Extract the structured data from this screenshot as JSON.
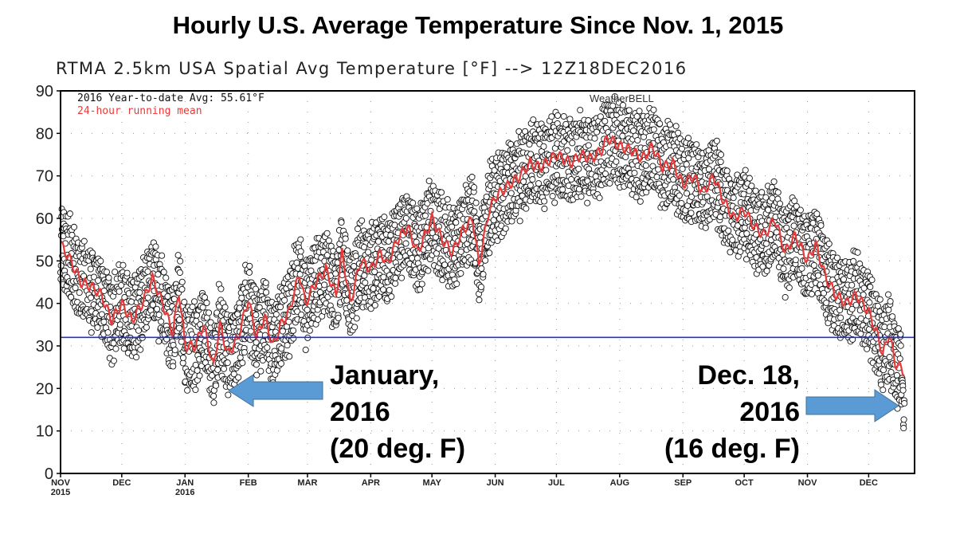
{
  "chart_data": {
    "type": "scatter",
    "title": "Hourly U.S. Average Temperature Since Nov. 1, 2015",
    "subtitle": "RTMA 2.5km USA Spatial Avg Temperature [°F] --> 12Z18DEC2016",
    "legend": {
      "avg_text": "2016 Year-to-date Avg: 55.61°F",
      "mean_text": "24-hour running mean",
      "placement": "top-left"
    },
    "watermark": "WeatherBELL",
    "ylim": [
      0,
      90
    ],
    "yticks": [
      0,
      10,
      20,
      30,
      40,
      50,
      60,
      70,
      80,
      90
    ],
    "xlim_days_since_2015_11_01": [
      0,
      418.5
    ],
    "xticks": [
      {
        "day": 0,
        "label": "NOV",
        "sub": "2015"
      },
      {
        "day": 30,
        "label": "DEC",
        "sub": ""
      },
      {
        "day": 61,
        "label": "JAN",
        "sub": "2016"
      },
      {
        "day": 92,
        "label": "FEB",
        "sub": ""
      },
      {
        "day": 121,
        "label": "MAR",
        "sub": ""
      },
      {
        "day": 152,
        "label": "APR",
        "sub": ""
      },
      {
        "day": 182,
        "label": "MAY",
        "sub": ""
      },
      {
        "day": 213,
        "label": "JUN",
        "sub": ""
      },
      {
        "day": 243,
        "label": "JUL",
        "sub": ""
      },
      {
        "day": 274,
        "label": "AUG",
        "sub": ""
      },
      {
        "day": 305,
        "label": "SEP",
        "sub": ""
      },
      {
        "day": 335,
        "label": "OCT",
        "sub": ""
      },
      {
        "day": 366,
        "label": "NOV",
        "sub": ""
      },
      {
        "day": 396,
        "label": "DEC",
        "sub": ""
      }
    ],
    "reference_line": {
      "value": 32,
      "color": "#2233cc"
    },
    "running_mean": {
      "color": "#e83a3a",
      "days": [
        0,
        5,
        10,
        15,
        20,
        25,
        30,
        35,
        40,
        45,
        50,
        55,
        58,
        61,
        66,
        70,
        75,
        78,
        82,
        87,
        92,
        96,
        100,
        104,
        108,
        112,
        117,
        120,
        125,
        130,
        135,
        138,
        142,
        147,
        152,
        157,
        160,
        165,
        170,
        175,
        182,
        187,
        192,
        197,
        202,
        205,
        210,
        213,
        220,
        225,
        230,
        235,
        243,
        250,
        255,
        260,
        265,
        268,
        274,
        280,
        285,
        290,
        295,
        300,
        305,
        310,
        315,
        320,
        325,
        330,
        335,
        340,
        345,
        350,
        355,
        360,
        366,
        370,
        375,
        380,
        385,
        390,
        396,
        400,
        403,
        406,
        409,
        413.5
      ],
      "temps": [
        54,
        50,
        45,
        44,
        42,
        36,
        40,
        36,
        40,
        46,
        40,
        33,
        43,
        30,
        30,
        35,
        25,
        35,
        28,
        32,
        41,
        32,
        37,
        30,
        35,
        38,
        47,
        40,
        45,
        48,
        42,
        52,
        40,
        50,
        48,
        52,
        49,
        55,
        58,
        52,
        60,
        55,
        52,
        57,
        60,
        49,
        62,
        65,
        68,
        70,
        73,
        72,
        75,
        73,
        75,
        74,
        76,
        79,
        77,
        76,
        74,
        77,
        72,
        73,
        68,
        70,
        66,
        70,
        64,
        60,
        62,
        58,
        56,
        60,
        52,
        56,
        50,
        54,
        46,
        42,
        40,
        42,
        38,
        33,
        28,
        33,
        26,
        24
      ]
    },
    "hourly_spread_degF": 9,
    "annotations": [
      {
        "lines": [
          "January,",
          "2016",
          "(20 deg. F)"
        ]
      },
      {
        "lines": [
          "Dec. 18,",
          "2016",
          "(16 deg. F)"
        ]
      }
    ],
    "arrow_color": "#5b9bd5"
  }
}
